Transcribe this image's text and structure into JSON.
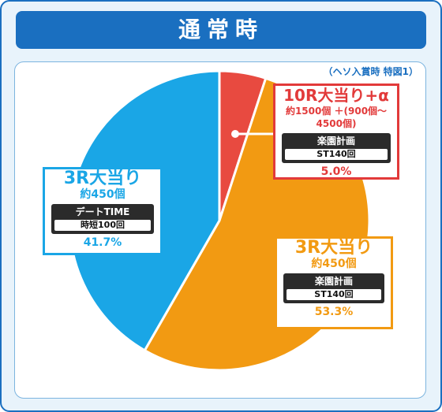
{
  "header": {
    "title": "通常時"
  },
  "note": "（ヘソ入賞時 特図1）",
  "chart_data": {
    "type": "pie",
    "title": "通常時",
    "slices": [
      {
        "name": "10R大当り+α",
        "value": 5.0,
        "color": "#e84a40"
      },
      {
        "name": "3R大当り",
        "value": 53.3,
        "color": "#f29a12"
      },
      {
        "name": "3R大当り",
        "value": 41.7,
        "color": "#1aa6e6"
      }
    ]
  },
  "labels": {
    "red": {
      "title": "10R大当り+α",
      "sub": "約1500個 ＋(900個～4500個)",
      "bar": "楽園計画",
      "chip": "ST140回",
      "pct": "5.0%"
    },
    "orange": {
      "title": "3R大当り",
      "sub": "約450個",
      "bar": "楽園計画",
      "chip": "ST140回",
      "pct": "53.3%"
    },
    "blue": {
      "title": "3R大当り",
      "sub": "約450個",
      "bar": "デートTIME",
      "chip": "時短100回",
      "pct": "41.7%"
    }
  }
}
